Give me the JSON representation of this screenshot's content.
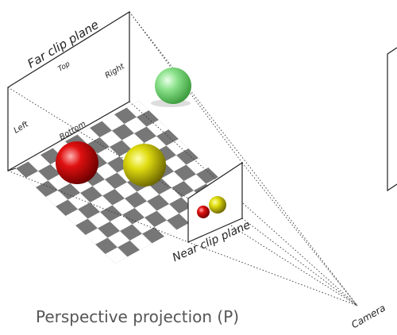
{
  "far_plane": {
    "title": "Far clip plane",
    "top": "Top",
    "right": "Right",
    "left": "Left",
    "bottom": "Bottom"
  },
  "near_plane": {
    "title": "Near clip plane"
  },
  "caption": "Perspective projection (P)",
  "camera": "Camera"
}
